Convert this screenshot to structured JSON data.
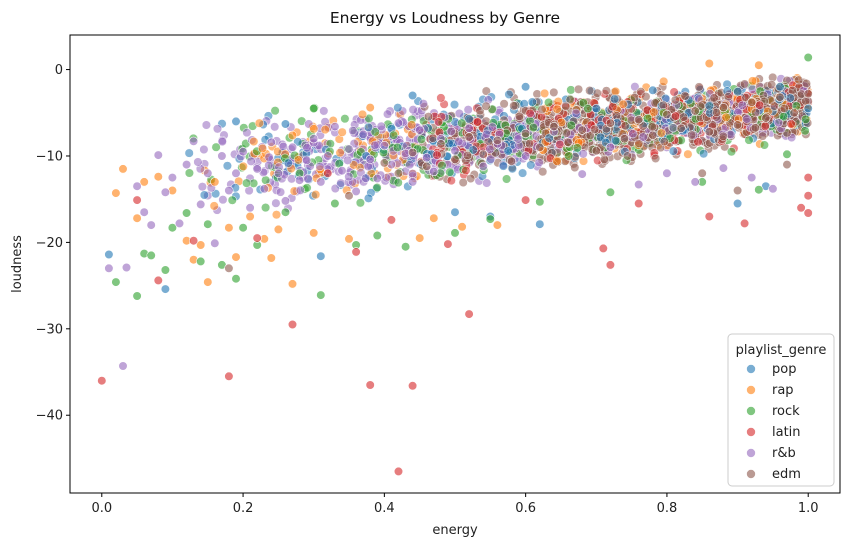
{
  "chart_data": {
    "type": "scatter",
    "title": "Energy vs Loudness by Genre",
    "xlabel": "energy",
    "ylabel": "loudness",
    "xlim": [
      -0.045,
      1.045
    ],
    "ylim": [
      -49,
      4
    ],
    "xticks": [
      0.0,
      0.2,
      0.4,
      0.6,
      0.8,
      1.0
    ],
    "xtick_labels": [
      "0.0",
      "0.2",
      "0.4",
      "0.6",
      "0.8",
      "1.0"
    ],
    "yticks": [
      0,
      -10,
      -20,
      -30,
      -40
    ],
    "ytick_labels": [
      "0",
      "−10",
      "−20",
      "−30",
      "−40"
    ],
    "grid": false,
    "legend": {
      "title": "playlist_genre",
      "position": "lower-right"
    },
    "series": [
      {
        "name": "pop",
        "color": "#1f77b4",
        "points": [
          [
            0.01,
            -21.4
          ],
          [
            0.09,
            -25.4
          ],
          [
            0.19,
            -6.0
          ],
          [
            0.26,
            -6.3
          ],
          [
            0.31,
            -21.6
          ],
          [
            0.44,
            -3.0
          ],
          [
            0.5,
            -16.5
          ],
          [
            0.55,
            -17.0
          ],
          [
            0.6,
            -2.0
          ],
          [
            0.62,
            -17.9
          ],
          [
            0.7,
            -4.5
          ],
          [
            0.78,
            -2.4
          ],
          [
            0.9,
            -15.5
          ],
          [
            0.94,
            -13.5
          ],
          [
            0.96,
            -2.0
          ],
          [
            1.0,
            -4.5
          ]
        ]
      },
      {
        "name": "rap",
        "color": "#ff7f0e",
        "points": [
          [
            0.02,
            -14.3
          ],
          [
            0.03,
            -11.5
          ],
          [
            0.05,
            -17.2
          ],
          [
            0.06,
            -13.0
          ],
          [
            0.08,
            -12.4
          ],
          [
            0.1,
            -14.0
          ],
          [
            0.12,
            -19.8
          ],
          [
            0.13,
            -22.0
          ],
          [
            0.14,
            -20.3
          ],
          [
            0.15,
            -24.6
          ],
          [
            0.16,
            -13.0
          ],
          [
            0.18,
            -18.3
          ],
          [
            0.19,
            -21.7
          ],
          [
            0.21,
            -17.0
          ],
          [
            0.23,
            -19.6
          ],
          [
            0.24,
            -21.8
          ],
          [
            0.25,
            -18.5
          ],
          [
            0.27,
            -24.8
          ],
          [
            0.3,
            -18.9
          ],
          [
            0.35,
            -19.6
          ],
          [
            0.38,
            -4.4
          ],
          [
            0.45,
            -19.5
          ],
          [
            0.47,
            -17.2
          ],
          [
            0.51,
            -18.2
          ],
          [
            0.56,
            -18.0
          ],
          [
            0.86,
            0.7
          ],
          [
            0.93,
            0.5
          ]
        ]
      },
      {
        "name": "rock",
        "color": "#2ca02c",
        "points": [
          [
            0.02,
            -24.6
          ],
          [
            0.05,
            -26.2
          ],
          [
            0.06,
            -21.3
          ],
          [
            0.07,
            -21.5
          ],
          [
            0.09,
            -23.2
          ],
          [
            0.1,
            -18.3
          ],
          [
            0.12,
            -16.6
          ],
          [
            0.14,
            -22.2
          ],
          [
            0.15,
            -17.9
          ],
          [
            0.17,
            -22.6
          ],
          [
            0.19,
            -24.2
          ],
          [
            0.2,
            -18.3
          ],
          [
            0.22,
            -20.3
          ],
          [
            0.26,
            -16.5
          ],
          [
            0.28,
            -12.0
          ],
          [
            0.3,
            -4.5
          ],
          [
            0.31,
            -26.1
          ],
          [
            0.33,
            -15.5
          ],
          [
            0.36,
            -20.3
          ],
          [
            0.39,
            -19.2
          ],
          [
            0.43,
            -20.5
          ],
          [
            0.5,
            -18.9
          ],
          [
            0.55,
            -17.3
          ],
          [
            0.62,
            -15.3
          ],
          [
            0.72,
            -14.2
          ],
          [
            0.85,
            -13.0
          ],
          [
            0.93,
            -13.9
          ],
          [
            0.97,
            -9.8
          ],
          [
            1.0,
            1.4
          ]
        ]
      },
      {
        "name": "latin",
        "color": "#d62728",
        "points": [
          [
            0.0,
            -36.0
          ],
          [
            0.05,
            -15.1
          ],
          [
            0.08,
            -24.4
          ],
          [
            0.13,
            -19.8
          ],
          [
            0.18,
            -35.5
          ],
          [
            0.22,
            -19.5
          ],
          [
            0.27,
            -29.5
          ],
          [
            0.32,
            -12.0
          ],
          [
            0.36,
            -21.1
          ],
          [
            0.38,
            -36.5
          ],
          [
            0.41,
            -17.4
          ],
          [
            0.42,
            -46.5
          ],
          [
            0.44,
            -36.6
          ],
          [
            0.49,
            -20.2
          ],
          [
            0.52,
            -28.3
          ],
          [
            0.6,
            -15.1
          ],
          [
            0.71,
            -20.7
          ],
          [
            0.72,
            -22.6
          ],
          [
            0.76,
            -15.5
          ],
          [
            0.86,
            -17.0
          ],
          [
            0.91,
            -17.8
          ],
          [
            0.99,
            -16.0
          ],
          [
            1.0,
            -16.6
          ],
          [
            1.0,
            -12.5
          ],
          [
            1.0,
            -14.6
          ]
        ]
      },
      {
        "name": "r&b",
        "color": "#9467bd",
        "points": [
          [
            0.01,
            -23.0
          ],
          [
            0.03,
            -34.3
          ],
          [
            0.035,
            -22.9
          ],
          [
            0.05,
            -13.5
          ],
          [
            0.06,
            -16.5
          ],
          [
            0.07,
            -18.0
          ],
          [
            0.08,
            -9.9
          ],
          [
            0.09,
            -14.2
          ],
          [
            0.1,
            -12.5
          ],
          [
            0.11,
            -17.8
          ],
          [
            0.12,
            -11.0
          ],
          [
            0.13,
            -8.3
          ],
          [
            0.14,
            -15.6
          ],
          [
            0.15,
            -12.0
          ],
          [
            0.16,
            -20.1
          ],
          [
            0.17,
            -10.0
          ],
          [
            0.18,
            -14.0
          ],
          [
            0.19,
            -12.0
          ],
          [
            0.2,
            -9.5
          ],
          [
            0.21,
            -16.0
          ],
          [
            0.22,
            -11.5
          ],
          [
            0.23,
            -13.8
          ],
          [
            0.24,
            -8.4
          ],
          [
            0.25,
            -12.0
          ],
          [
            0.26,
            -15.2
          ],
          [
            0.27,
            -9.0
          ],
          [
            0.28,
            -12.8
          ],
          [
            0.29,
            -10.5
          ],
          [
            0.3,
            -8.0
          ],
          [
            0.31,
            -13.0
          ],
          [
            0.32,
            -10.0
          ],
          [
            0.33,
            -6.6
          ],
          [
            0.34,
            -11.7
          ],
          [
            0.35,
            -9.2
          ],
          [
            0.36,
            -14.1
          ],
          [
            0.37,
            -7.5
          ],
          [
            0.38,
            -10.4
          ],
          [
            0.39,
            -12.6
          ],
          [
            0.4,
            -8.8
          ],
          [
            0.41,
            -11.0
          ],
          [
            0.42,
            -6.2
          ],
          [
            0.43,
            -9.7
          ],
          [
            0.44,
            -13.0
          ],
          [
            0.45,
            -7.0
          ],
          [
            0.46,
            -10.2
          ],
          [
            0.47,
            -11.8
          ],
          [
            0.48,
            -8.0
          ],
          [
            0.5,
            -9.4
          ],
          [
            0.52,
            -6.8
          ],
          [
            0.54,
            -11.2
          ],
          [
            0.56,
            -8.6
          ],
          [
            0.6,
            -10.0
          ],
          [
            0.64,
            -7.2
          ],
          [
            0.68,
            -12.1
          ],
          [
            0.72,
            -9.0
          ],
          [
            0.76,
            -13.3
          ],
          [
            0.8,
            -12.0
          ],
          [
            0.84,
            -13.0
          ],
          [
            0.88,
            -11.4
          ],
          [
            0.92,
            -12.5
          ],
          [
            0.95,
            -13.8
          ]
        ]
      },
      {
        "name": "edm",
        "color": "#8c564b",
        "points": [
          [
            0.18,
            -23.0
          ],
          [
            0.35,
            -14.6
          ],
          [
            0.4,
            -10.8
          ],
          [
            0.42,
            -12.0
          ],
          [
            0.44,
            -9.6
          ],
          [
            0.46,
            -11.2
          ],
          [
            0.48,
            -8.6
          ],
          [
            0.5,
            -10.4
          ],
          [
            0.52,
            -7.8
          ],
          [
            0.54,
            -9.8
          ],
          [
            0.56,
            -8.2
          ],
          [
            0.58,
            -10.6
          ],
          [
            0.6,
            -7.4
          ],
          [
            0.62,
            -9.0
          ],
          [
            0.64,
            -6.6
          ],
          [
            0.66,
            -8.4
          ],
          [
            0.68,
            -7.0
          ],
          [
            0.7,
            -9.4
          ],
          [
            0.72,
            -6.2
          ],
          [
            0.74,
            -8.0
          ],
          [
            0.76,
            -5.8
          ],
          [
            0.78,
            -7.6
          ],
          [
            0.8,
            -5.2
          ],
          [
            0.82,
            -6.8
          ],
          [
            0.84,
            -4.8
          ],
          [
            0.86,
            -7.2
          ],
          [
            0.88,
            -4.4
          ],
          [
            0.9,
            -6.4
          ],
          [
            0.92,
            -3.8
          ],
          [
            0.94,
            -5.6
          ],
          [
            0.96,
            -3.2
          ],
          [
            0.98,
            -5.0
          ],
          [
            1.0,
            -2.8
          ],
          [
            0.85,
            -12.0
          ],
          [
            0.9,
            -14.0
          ],
          [
            0.97,
            -11.0
          ]
        ]
      }
    ]
  }
}
